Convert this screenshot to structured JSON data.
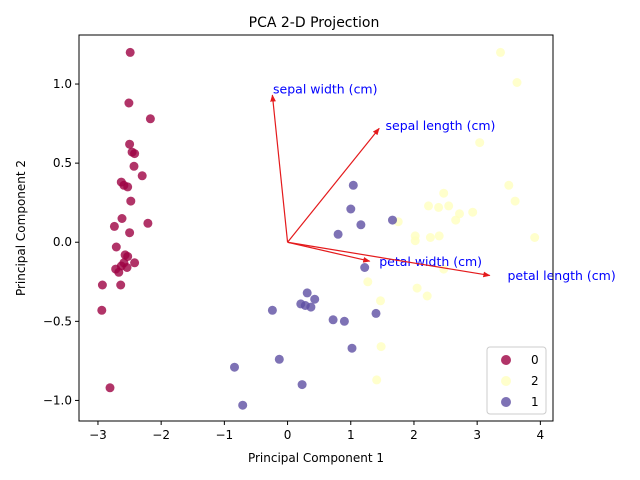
{
  "chart_data": {
    "type": "scatter",
    "title": "PCA 2-D Projection",
    "xlabel": "Principal Component 1",
    "ylabel": "Principal Component 2",
    "xlim": [
      -3.3,
      4.2
    ],
    "ylim": [
      -1.13,
      1.31
    ],
    "xticks": [
      -3,
      -2,
      -1,
      0,
      1,
      2,
      3,
      4
    ],
    "xtick_labels": [
      "−3",
      "−2",
      "−1",
      "0",
      "1",
      "2",
      "3",
      "4"
    ],
    "yticks": [
      -1.0,
      -0.5,
      0.0,
      0.5,
      1.0
    ],
    "ytick_labels": [
      "−1.0",
      "−0.5",
      "0.0",
      "0.5",
      "1.0"
    ],
    "grid": false,
    "legend_position": "bottom-right",
    "series": [
      {
        "name": "0",
        "color": "#9e0142",
        "points": [
          [
            -2.49,
            1.2
          ],
          [
            -2.51,
            0.88
          ],
          [
            -2.17,
            0.78
          ],
          [
            -2.5,
            0.62
          ],
          [
            -2.46,
            0.57
          ],
          [
            -2.42,
            0.56
          ],
          [
            -2.43,
            0.48
          ],
          [
            -2.3,
            0.42
          ],
          [
            -2.63,
            0.38
          ],
          [
            -2.59,
            0.36
          ],
          [
            -2.53,
            0.35
          ],
          [
            -2.48,
            0.26
          ],
          [
            -2.62,
            0.15
          ],
          [
            -2.21,
            0.12
          ],
          [
            -2.74,
            0.1
          ],
          [
            -2.5,
            0.06
          ],
          [
            -2.71,
            -0.03
          ],
          [
            -2.57,
            -0.08
          ],
          [
            -2.53,
            -0.09
          ],
          [
            -2.59,
            -0.13
          ],
          [
            -2.63,
            -0.15
          ],
          [
            -2.54,
            -0.16
          ],
          [
            -2.42,
            -0.13
          ],
          [
            -2.72,
            -0.17
          ],
          [
            -2.67,
            -0.19
          ],
          [
            -2.64,
            -0.27
          ],
          [
            -2.93,
            -0.27
          ],
          [
            -2.94,
            -0.43
          ],
          [
            -2.81,
            -0.92
          ]
        ]
      },
      {
        "name": "2",
        "color": "#ffffbf",
        "points": [
          [
            3.37,
            1.2
          ],
          [
            3.63,
            1.01
          ],
          [
            3.04,
            0.63
          ],
          [
            3.5,
            0.36
          ],
          [
            3.6,
            0.26
          ],
          [
            2.47,
            0.31
          ],
          [
            2.39,
            0.22
          ],
          [
            2.55,
            0.23
          ],
          [
            2.23,
            0.23
          ],
          [
            2.66,
            0.14
          ],
          [
            2.72,
            0.18
          ],
          [
            2.93,
            0.19
          ],
          [
            1.75,
            0.13
          ],
          [
            2.02,
            0.04
          ],
          [
            2.02,
            0.01
          ],
          [
            2.26,
            0.03
          ],
          [
            2.4,
            0.04
          ],
          [
            3.91,
            0.03
          ],
          [
            2.47,
            -0.17
          ],
          [
            1.27,
            -0.25
          ],
          [
            2.05,
            -0.29
          ],
          [
            2.21,
            -0.34
          ],
          [
            1.47,
            -0.37
          ],
          [
            1.48,
            -0.66
          ],
          [
            1.41,
            -0.87
          ]
        ]
      },
      {
        "name": "1",
        "color": "#5e4fa2",
        "points": [
          [
            1.04,
            0.36
          ],
          [
            1.0,
            0.21
          ],
          [
            1.16,
            0.11
          ],
          [
            1.66,
            0.14
          ],
          [
            0.8,
            0.05
          ],
          [
            1.22,
            -0.16
          ],
          [
            0.31,
            -0.32
          ],
          [
            0.43,
            -0.36
          ],
          [
            0.21,
            -0.39
          ],
          [
            0.28,
            -0.4
          ],
          [
            0.37,
            -0.41
          ],
          [
            -0.24,
            -0.43
          ],
          [
            0.72,
            -0.49
          ],
          [
            0.9,
            -0.5
          ],
          [
            1.4,
            -0.45
          ],
          [
            1.02,
            -0.67
          ],
          [
            -0.13,
            -0.74
          ],
          [
            -0.84,
            -0.79
          ],
          [
            0.23,
            -0.9
          ],
          [
            -0.71,
            -1.03
          ]
        ]
      }
    ],
    "loadings": [
      {
        "label": "sepal width (cm)",
        "x": -0.24,
        "y": 0.93,
        "label_x": -0.23,
        "label_y": 0.94
      },
      {
        "label": "sepal length (cm)",
        "x": 1.45,
        "y": 0.72,
        "label_x": 1.55,
        "label_y": 0.71
      },
      {
        "label": "petal width (cm)",
        "x": 1.3,
        "y": -0.12,
        "label_x": 1.45,
        "label_y": -0.15
      },
      {
        "label": "petal length (cm)",
        "x": 3.2,
        "y": -0.21,
        "label_x": 3.48,
        "label_y": -0.24
      }
    ],
    "loading_color": "#0000ff",
    "arrow_color": "#e41a1c",
    "legend_entries": [
      "0",
      "2",
      "1"
    ]
  }
}
